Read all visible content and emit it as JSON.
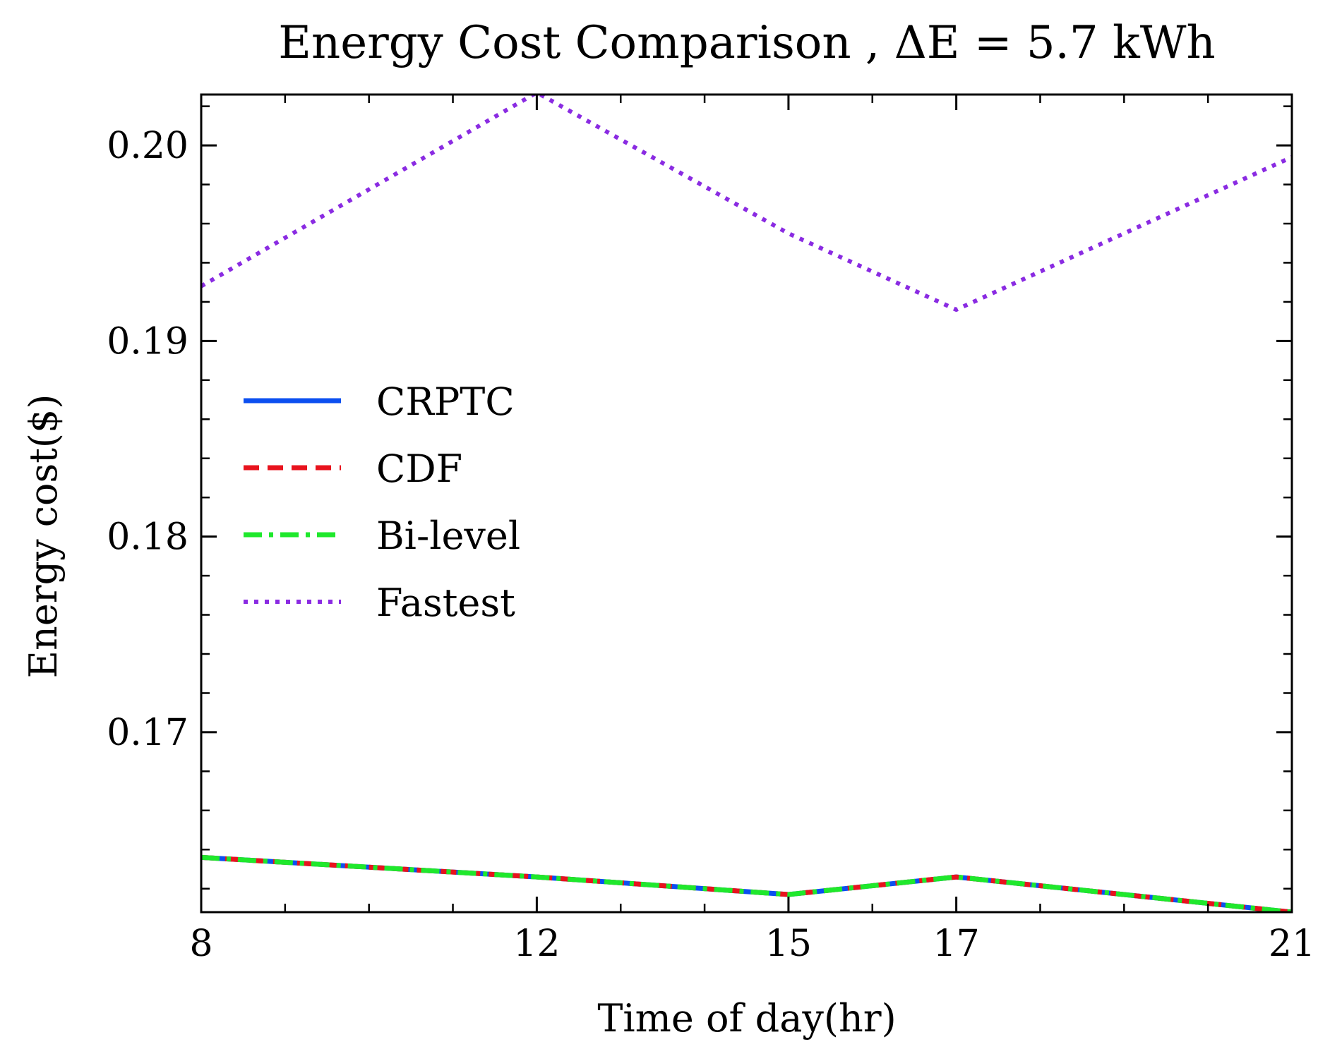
{
  "chart_data": {
    "type": "line",
    "title": "Energy Cost Comparison , ΔE = 5.7 kWh",
    "xlabel": "Time of day(hr)",
    "ylabel": "Energy cost($)",
    "x": [
      8,
      12,
      15,
      17,
      21
    ],
    "xticks": [
      "8",
      "12",
      "15",
      "17",
      "21"
    ],
    "xlim": [
      8,
      21
    ],
    "yticks": [
      "0.17",
      "0.18",
      "0.19",
      "0.20"
    ],
    "ytick_values": [
      0.17,
      0.18,
      0.19,
      0.2
    ],
    "ylim": [
      0.1608,
      0.2026
    ],
    "grid": false,
    "legend_position": "center-left",
    "series": [
      {
        "name": "CRPTC",
        "color": "#0c4ff0",
        "style": "solid",
        "values": [
          0.1636,
          0.1626,
          0.1617,
          0.1626,
          0.1608
        ]
      },
      {
        "name": "CDF",
        "color": "#e8131d",
        "style": "dashed",
        "values": [
          0.1636,
          0.1626,
          0.1617,
          0.1626,
          0.1608
        ]
      },
      {
        "name": "Bi-level",
        "color": "#1fe82c",
        "style": "dashdot",
        "values": [
          0.1636,
          0.1626,
          0.1617,
          0.1626,
          0.1608
        ]
      },
      {
        "name": "Fastest",
        "color": "#8a2be2",
        "style": "dotted",
        "values": [
          0.1928,
          0.2027,
          0.1955,
          0.1916,
          0.1994
        ]
      }
    ]
  }
}
